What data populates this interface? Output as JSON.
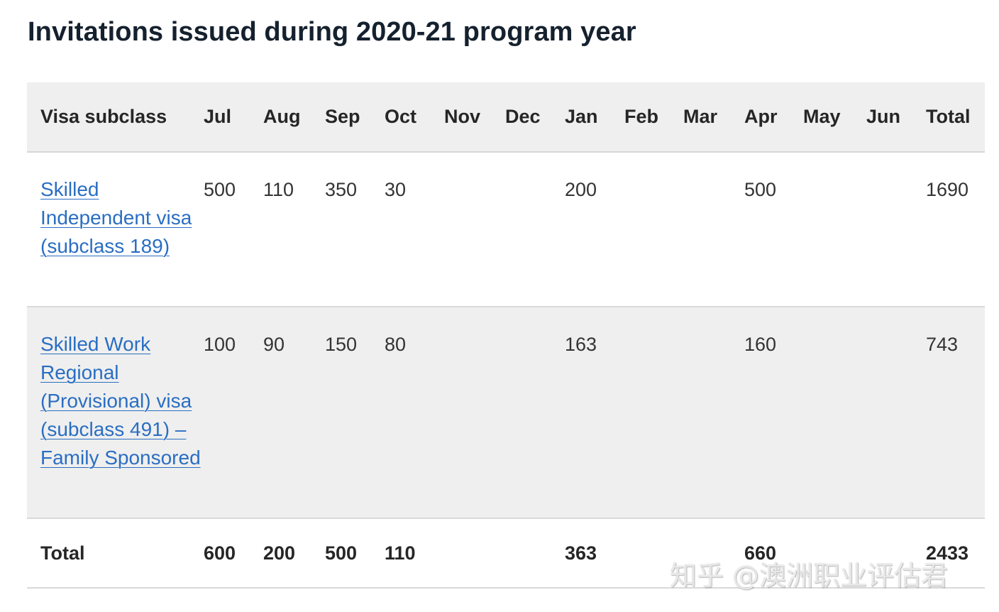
{
  "title": "Invitations issued during 2020-21 program year",
  "table": {
    "headers": [
      "Visa subclass",
      "Jul",
      "Aug",
      "Sep",
      "Oct",
      "Nov",
      "Dec",
      "Jan",
      "Feb",
      "Mar",
      "Apr",
      "May",
      "Jun",
      "Total"
    ],
    "rows": [
      {
        "visa": "Skilled Independent visa (subclass 189)",
        "cells": [
          "500",
          "110",
          "350",
          "30",
          "",
          "",
          "200",
          "",
          "",
          "500",
          "",
          "",
          "1690"
        ]
      },
      {
        "visa": "Skilled Work Regional (Provisional) visa (subclass 491) – Family Sponsored",
        "cells": [
          "100",
          "90",
          "150",
          "80",
          "",
          "",
          "163",
          "",
          "",
          "160",
          "",
          "",
          "743"
        ]
      }
    ],
    "total": {
      "label": "Total",
      "cells": [
        "600",
        "200",
        "500",
        "110",
        "",
        "",
        "363",
        "",
        "",
        "660",
        "",
        "",
        "2433"
      ]
    }
  },
  "watermark": "知乎 @澳洲职业评估君",
  "colors": {
    "link": "#2a6ec2",
    "header_bg": "#efefef",
    "alt_row_bg": "#efefef",
    "title": "#15212e"
  }
}
